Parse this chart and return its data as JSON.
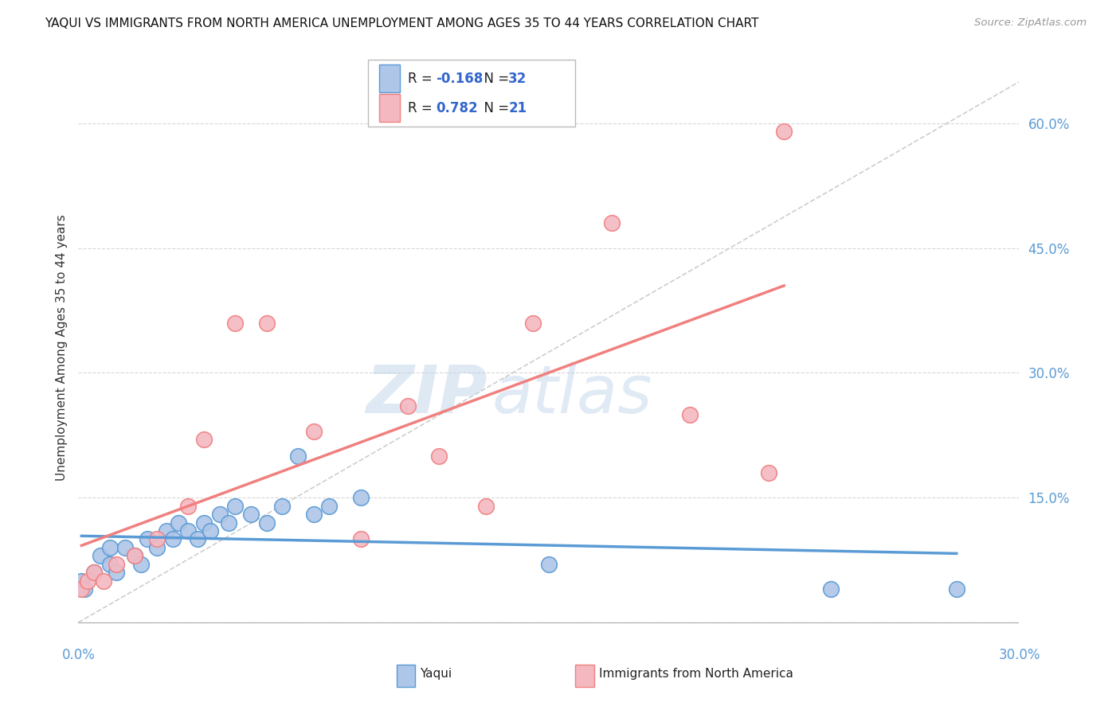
{
  "title": "YAQUI VS IMMIGRANTS FROM NORTH AMERICA UNEMPLOYMENT AMONG AGES 35 TO 44 YEARS CORRELATION CHART",
  "source": "Source: ZipAtlas.com",
  "ylabel": "Unemployment Among Ages 35 to 44 years",
  "xlim": [
    0.0,
    0.3
  ],
  "ylim": [
    -0.02,
    0.68
  ],
  "yplot_min": 0.0,
  "yplot_max": 0.65,
  "xtick_pos": [
    0.0,
    0.3
  ],
  "xtick_labels": [
    "0.0%",
    "30.0%"
  ],
  "ytick_pos": [
    0.0,
    0.15,
    0.3,
    0.45,
    0.6
  ],
  "ytick_labels": [
    "",
    "15.0%",
    "30.0%",
    "45.0%",
    "60.0%"
  ],
  "yaqui_x": [
    0.001,
    0.002,
    0.005,
    0.007,
    0.01,
    0.01,
    0.012,
    0.015,
    0.018,
    0.02,
    0.022,
    0.025,
    0.028,
    0.03,
    0.032,
    0.035,
    0.038,
    0.04,
    0.042,
    0.045,
    0.048,
    0.05,
    0.055,
    0.06,
    0.065,
    0.07,
    0.075,
    0.08,
    0.09,
    0.15,
    0.24,
    0.28
  ],
  "yaqui_y": [
    0.05,
    0.04,
    0.06,
    0.08,
    0.07,
    0.09,
    0.06,
    0.09,
    0.08,
    0.07,
    0.1,
    0.09,
    0.11,
    0.1,
    0.12,
    0.11,
    0.1,
    0.12,
    0.11,
    0.13,
    0.12,
    0.14,
    0.13,
    0.12,
    0.14,
    0.2,
    0.13,
    0.14,
    0.15,
    0.07,
    0.04,
    0.04
  ],
  "immigrants_x": [
    0.001,
    0.003,
    0.005,
    0.008,
    0.012,
    0.018,
    0.025,
    0.035,
    0.04,
    0.05,
    0.06,
    0.075,
    0.09,
    0.105,
    0.115,
    0.13,
    0.145,
    0.17,
    0.195,
    0.22,
    0.225
  ],
  "immigrants_y": [
    0.04,
    0.05,
    0.06,
    0.05,
    0.07,
    0.08,
    0.1,
    0.14,
    0.22,
    0.36,
    0.36,
    0.23,
    0.1,
    0.26,
    0.2,
    0.14,
    0.36,
    0.48,
    0.25,
    0.18,
    0.59
  ],
  "yaqui_color": "#aec6e8",
  "immigrants_color": "#f4b8c1",
  "yaqui_line_color": "#5b9bd5",
  "immigrants_line_color": "#f08080",
  "ref_line_color": "#c8c8c8",
  "R_yaqui": -0.168,
  "N_yaqui": 32,
  "R_immigrants": 0.782,
  "N_immigrants": 21,
  "background_color": "#ffffff",
  "grid_color": "#d8d8d8",
  "watermark_zip": "ZIP",
  "watermark_atlas": "atlas",
  "legend_label_yaqui": "Yaqui",
  "legend_label_immigrants": "Immigrants from North America"
}
